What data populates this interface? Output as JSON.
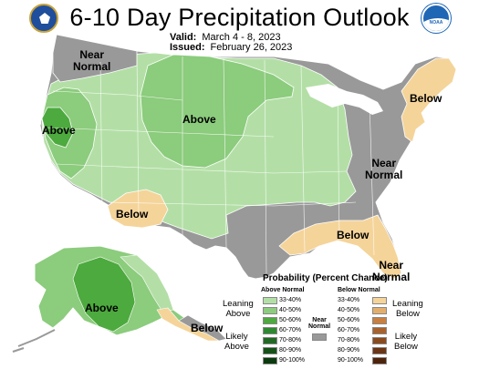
{
  "header": {
    "title": "6-10 Day Precipitation Outlook",
    "valid_label": "Valid:",
    "valid_value": "March 4 - 8, 2023",
    "issued_label": "Issued:",
    "issued_value": "February 26, 2023",
    "logo_left": "Department of Commerce seal",
    "logo_right": "NOAA",
    "logo_right_text": "NOAA"
  },
  "map": {
    "labels": {
      "near_normal_nw": [
        "Near",
        "Normal"
      ],
      "above_ca": "Above",
      "above_plains": "Above",
      "below_sw": "Below",
      "below_ne": "Below",
      "near_normal_east": [
        "Near",
        "Normal"
      ],
      "below_se": "Below",
      "near_normal_fl": [
        "Near",
        "Normal"
      ],
      "above_ak": "Above",
      "below_ak": "Below"
    },
    "colors": {
      "a33": "#b3dfa6",
      "a40": "#8ccc7d",
      "a50": "#4daa3e",
      "near": "#999999",
      "b33": "#f5d49a",
      "b40": "#e3ae6c",
      "b50": "#c9803f",
      "border": "#ffffff"
    }
  },
  "legend": {
    "title": "Probability (Percent Chance)",
    "above_header": "Above Normal",
    "below_header": "Below Normal",
    "near_header": [
      "Near",
      "Normal"
    ],
    "above_rows": [
      {
        "range": "33-40%",
        "color": "#b3dfa6"
      },
      {
        "range": "40-50%",
        "color": "#8ccc7d"
      },
      {
        "range": "50-60%",
        "color": "#4daa3e"
      },
      {
        "range": "60-70%",
        "color": "#2e8a30"
      },
      {
        "range": "70-80%",
        "color": "#216a24"
      },
      {
        "range": "80-90%",
        "color": "#155218"
      },
      {
        "range": "90-100%",
        "color": "#0b3a0e"
      }
    ],
    "below_rows": [
      {
        "range": "33-40%",
        "color": "#f5d49a"
      },
      {
        "range": "40-50%",
        "color": "#e3ae6c"
      },
      {
        "range": "50-60%",
        "color": "#c9803f"
      },
      {
        "range": "60-70%",
        "color": "#a9622c"
      },
      {
        "range": "70-80%",
        "color": "#8a4b1f"
      },
      {
        "range": "80-90%",
        "color": "#6c3515"
      },
      {
        "range": "90-100%",
        "color": "#4e230c"
      }
    ],
    "near_color": "#999999",
    "leaning_above": [
      "Leaning",
      "Above"
    ],
    "likely_above": [
      "Likely",
      "Above"
    ],
    "leaning_below": [
      "Leaning",
      "Below"
    ],
    "likely_below": [
      "Likely",
      "Below"
    ]
  }
}
